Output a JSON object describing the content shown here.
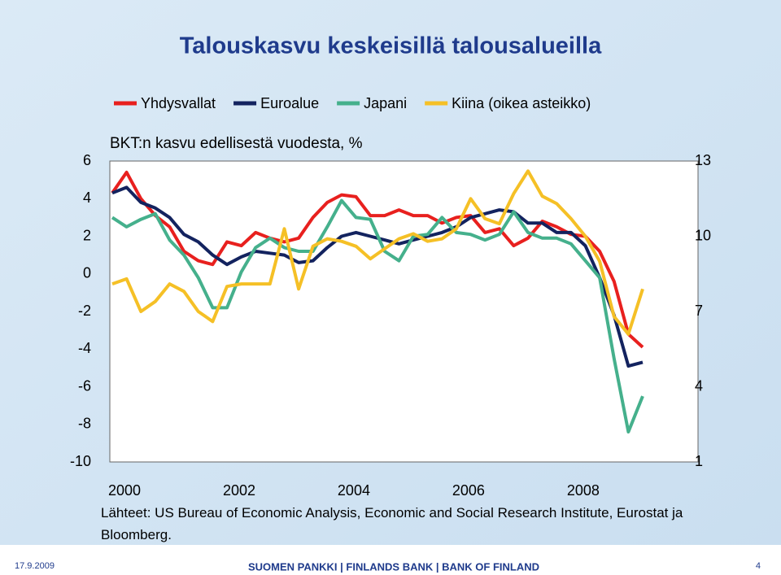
{
  "chart_data": {
    "type": "line",
    "title": "Talouskasvu keskeisillä talousalueilla",
    "subtitle": "BKT:n kasvu edellisestä vuodesta, %",
    "categories": [
      "2000",
      null,
      null,
      null,
      null,
      null,
      null,
      null,
      "2002",
      null,
      null,
      null,
      null,
      null,
      null,
      null,
      "2004",
      null,
      null,
      null,
      null,
      null,
      null,
      null,
      "2006",
      null,
      null,
      null,
      null,
      null,
      null,
      null,
      "2008",
      null,
      null,
      null,
      null,
      null
    ],
    "series": [
      {
        "name": "Yhdysvallat",
        "color": "#e8201e",
        "values": [
          4.3,
          5.4,
          4.0,
          3.1,
          2.5,
          1.2,
          0.7,
          0.5,
          1.7,
          1.5,
          2.2,
          1.9,
          1.7,
          1.9,
          3.0,
          3.8,
          4.2,
          4.1,
          3.1,
          3.1,
          3.4,
          3.1,
          3.1,
          2.7,
          3.0,
          3.1,
          2.2,
          2.4,
          1.5,
          1.9,
          2.8,
          2.5,
          2.1,
          2.0,
          1.2,
          -0.4,
          -3.2,
          -3.9
        ]
      },
      {
        "name": "Euroalue",
        "color": "#13235f",
        "values": [
          4.3,
          4.6,
          3.8,
          3.5,
          3.0,
          2.1,
          1.7,
          1.0,
          0.5,
          0.9,
          1.2,
          1.1,
          1.0,
          0.6,
          0.7,
          1.4,
          2.0,
          2.2,
          2.0,
          1.8,
          1.6,
          1.8,
          2.0,
          2.2,
          2.5,
          3.0,
          3.2,
          3.4,
          3.3,
          2.7,
          2.7,
          2.2,
          2.2,
          1.5,
          -0.2,
          -2.2,
          -4.9,
          -4.7
        ]
      },
      {
        "name": "Japani",
        "color": "#45b08c",
        "values": [
          3.0,
          2.5,
          2.9,
          3.2,
          1.8,
          1.0,
          -0.2,
          -1.8,
          -1.8,
          0.1,
          1.4,
          1.9,
          1.4,
          1.2,
          1.2,
          2.5,
          3.9,
          3.0,
          2.9,
          1.2,
          0.7,
          2.0,
          2.1,
          3.0,
          2.2,
          2.1,
          1.8,
          2.1,
          3.3,
          2.2,
          1.9,
          1.9,
          1.6,
          0.7,
          -0.2,
          -4.5,
          -8.4,
          -6.5
        ]
      },
      {
        "name": "Kiina (oikea asteikko)",
        "color": "#f5c026",
        "axis": "y2",
        "values": [
          8.1,
          8.3,
          7.0,
          7.4,
          8.1,
          7.8,
          7.0,
          6.6,
          8.0,
          8.1,
          8.1,
          8.1,
          10.3,
          7.9,
          9.6,
          9.9,
          9.8,
          9.6,
          9.1,
          9.5,
          9.9,
          10.1,
          9.8,
          9.9,
          10.3,
          11.5,
          10.7,
          10.5,
          11.7,
          12.6,
          11.6,
          11.3,
          10.7,
          10.0,
          9.0,
          6.8,
          6.1,
          7.9
        ]
      }
    ],
    "ylim": [
      -10,
      6
    ],
    "yticks": [
      -10,
      -8,
      -6,
      -4,
      -2,
      0,
      2,
      4,
      6
    ],
    "y2lim": [
      1,
      13
    ],
    "y2ticks": [
      1,
      4,
      7,
      10,
      13
    ],
    "grid": false
  },
  "source": "Lähteet: US Bureau of Economic Analysis, Economic and Social Research Institute, Eurostat ja Bloomberg.",
  "footer": {
    "date": "17.9.2009",
    "organization": "SUOMEN PANKKI | FINLANDS BANK | BANK OF FINLAND",
    "page": "4"
  }
}
